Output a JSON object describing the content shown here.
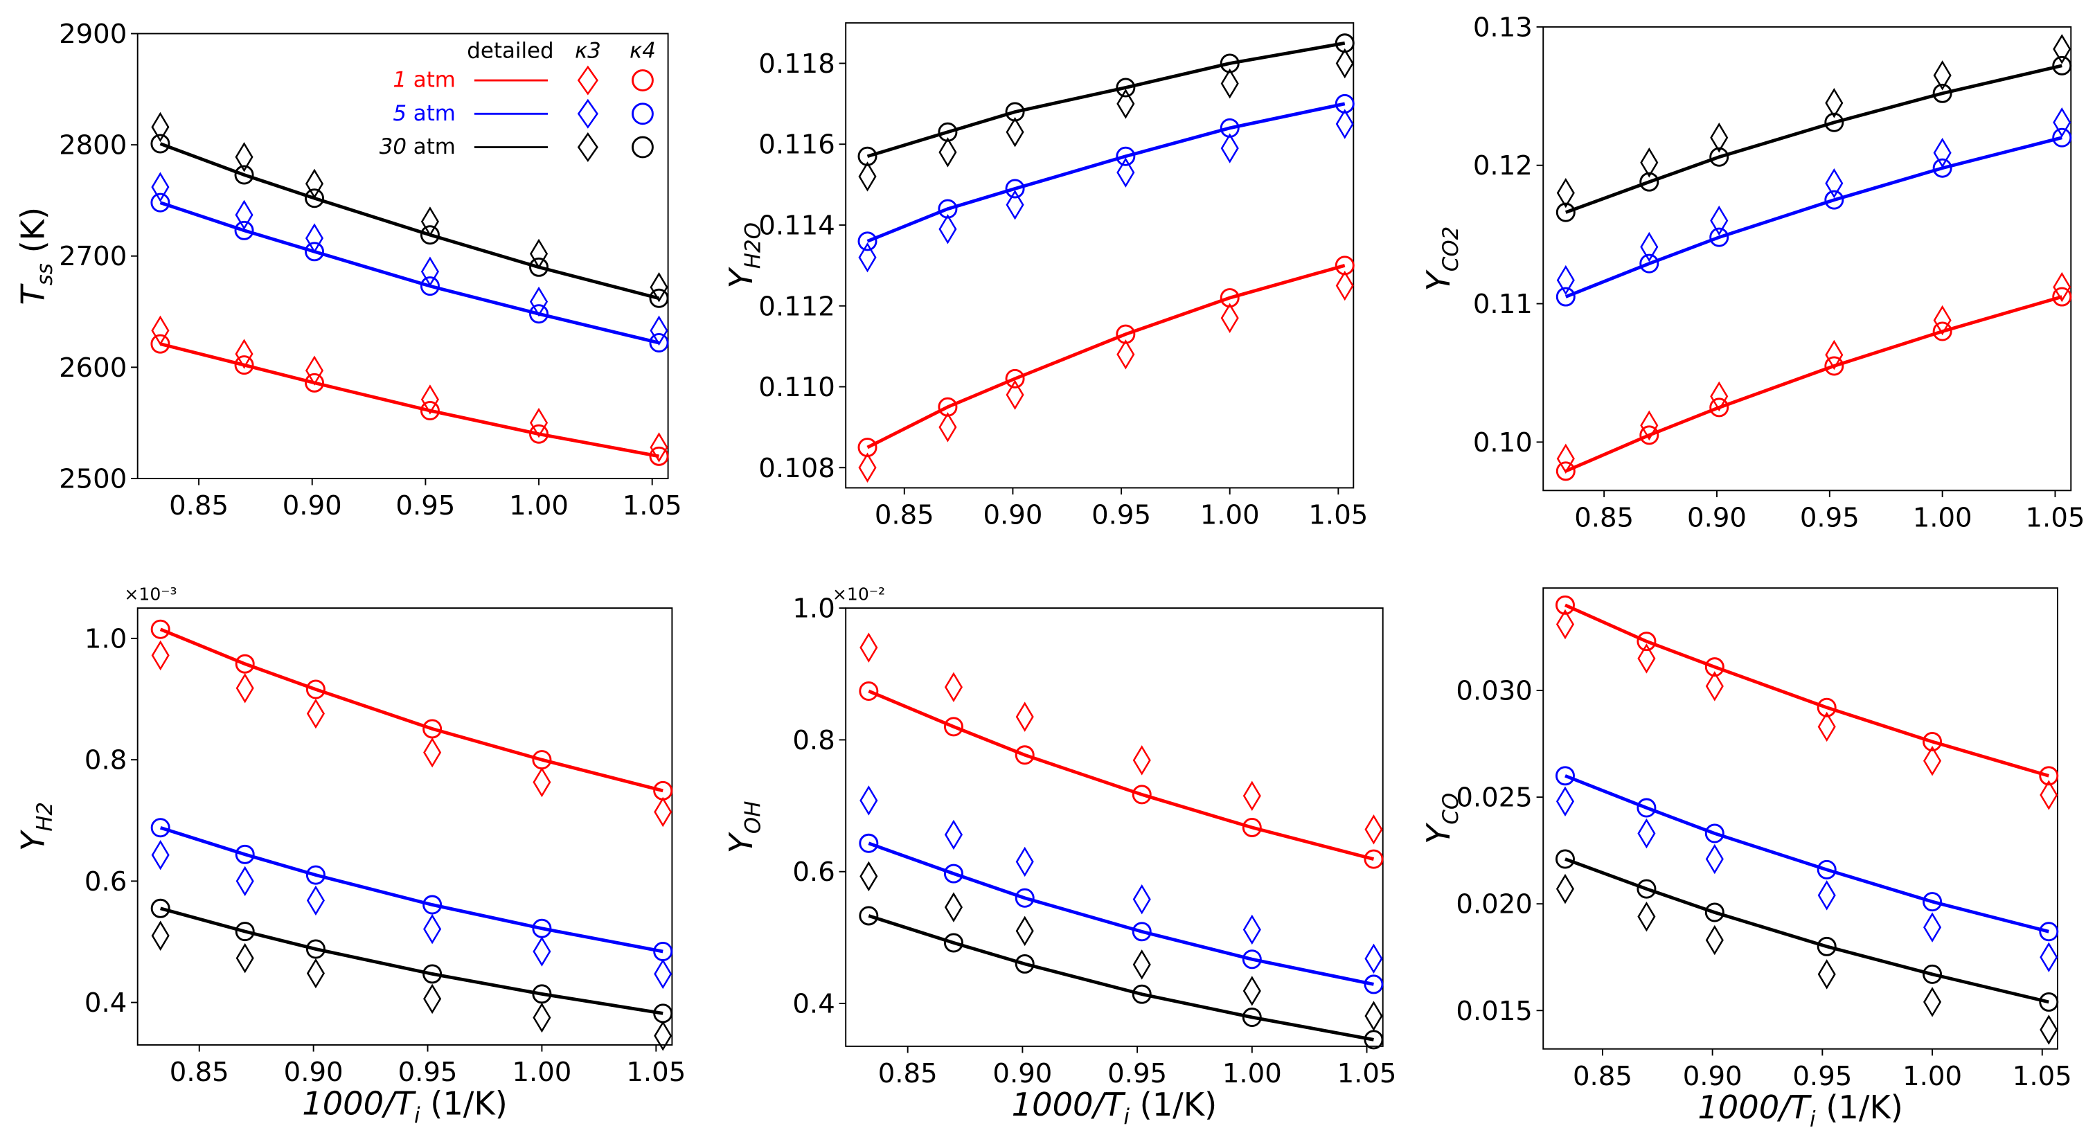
{
  "chart_data": [
    {
      "type": "line",
      "id": "tss",
      "ylabel": {
        "base": "T",
        "sub": "ss",
        "unit": " (K)"
      },
      "xlabel": "",
      "x": [
        0.833,
        0.87,
        0.901,
        0.952,
        1.0,
        1.053
      ],
      "xlim": [
        0.823,
        1.057
      ],
      "xticks": [
        "0.85",
        "0.90",
        "0.95",
        "1.00",
        "1.05"
      ],
      "ylim": [
        2500,
        2900
      ],
      "yticks": [
        "2500",
        "2600",
        "2700",
        "2800",
        "2900"
      ],
      "multiplier": "",
      "series": [
        {
          "pressure": "1 atm",
          "color": "#ff0000",
          "detailed": [
            2621,
            2602,
            2586,
            2561,
            2540,
            2520
          ],
          "k3": [
            2633,
            2612,
            2597,
            2571,
            2550,
            2528
          ],
          "k4": [
            2621,
            2602,
            2586,
            2561,
            2540,
            2520
          ]
        },
        {
          "pressure": "5 atm",
          "color": "#0000ff",
          "detailed": [
            2748,
            2723,
            2704,
            2673,
            2648,
            2622
          ],
          "k3": [
            2762,
            2737,
            2716,
            2686,
            2659,
            2633
          ],
          "k4": [
            2748,
            2723,
            2704,
            2673,
            2648,
            2622
          ]
        },
        {
          "pressure": "30 atm",
          "color": "#000000",
          "detailed": [
            2801,
            2773,
            2752,
            2719,
            2690,
            2662
          ],
          "k3": [
            2816,
            2789,
            2765,
            2731,
            2702,
            2672
          ],
          "k4": [
            2801,
            2773,
            2752,
            2719,
            2690,
            2662
          ]
        }
      ]
    },
    {
      "type": "line",
      "id": "h2o",
      "ylabel": {
        "base": "Y",
        "sub": "H2O",
        "unit": ""
      },
      "xlabel": "",
      "x": [
        0.833,
        0.87,
        0.901,
        0.952,
        1.0,
        1.053
      ],
      "xlim": [
        0.823,
        1.057
      ],
      "xticks": [
        "0.85",
        "0.90",
        "0.95",
        "1.00",
        "1.05"
      ],
      "ylim": [
        0.1075,
        0.119
      ],
      "yticks": [
        "0.108",
        "0.110",
        "0.112",
        "0.114",
        "0.116",
        "0.118"
      ],
      "multiplier": "",
      "series": [
        {
          "pressure": "1 atm",
          "color": "#ff0000",
          "detailed": [
            0.1085,
            0.1095,
            0.1102,
            0.1113,
            0.1122,
            0.113
          ],
          "k3": [
            0.108,
            0.109,
            0.1098,
            0.1108,
            0.1117,
            0.1125
          ],
          "k4": [
            0.1085,
            0.1095,
            0.1102,
            0.1113,
            0.1122,
            0.113
          ]
        },
        {
          "pressure": "5 atm",
          "color": "#0000ff",
          "detailed": [
            0.1136,
            0.1144,
            0.1149,
            0.1157,
            0.1164,
            0.117
          ],
          "k3": [
            0.1132,
            0.1139,
            0.1145,
            0.1153,
            0.1159,
            0.1165
          ],
          "k4": [
            0.1136,
            0.1144,
            0.1149,
            0.1157,
            0.1164,
            0.117
          ]
        },
        {
          "pressure": "30 atm",
          "color": "#000000",
          "detailed": [
            0.1157,
            0.1163,
            0.1168,
            0.1174,
            0.118,
            0.1185
          ],
          "k3": [
            0.1152,
            0.1158,
            0.1163,
            0.117,
            0.1175,
            0.118
          ],
          "k4": [
            0.1157,
            0.1163,
            0.1168,
            0.1174,
            0.118,
            0.1185
          ]
        }
      ]
    },
    {
      "type": "line",
      "id": "co2",
      "ylabel": {
        "base": "Y",
        "sub": "CO2",
        "unit": ""
      },
      "xlabel": "",
      "x": [
        0.833,
        0.87,
        0.901,
        0.952,
        1.0,
        1.053
      ],
      "xlim": [
        0.823,
        1.057
      ],
      "xticks": [
        "0.85",
        "0.90",
        "0.95",
        "1.00",
        "1.05"
      ],
      "ylim": [
        0.0965,
        0.13
      ],
      "yticks": [
        "0.10",
        "0.11",
        "0.12",
        "0.13"
      ],
      "multiplier": "",
      "series": [
        {
          "pressure": "1 atm",
          "color": "#ff0000",
          "detailed": [
            0.0979,
            0.1005,
            0.1025,
            0.1055,
            0.108,
            0.1105
          ],
          "k3": [
            0.0988,
            0.1012,
            0.1033,
            0.1063,
            0.1088,
            0.1112
          ],
          "k4": [
            0.0979,
            0.1005,
            0.1025,
            0.1055,
            0.108,
            0.1105
          ]
        },
        {
          "pressure": "5 atm",
          "color": "#0000ff",
          "detailed": [
            0.1105,
            0.1129,
            0.1148,
            0.1175,
            0.1198,
            0.122
          ],
          "k3": [
            0.1117,
            0.1141,
            0.116,
            0.1187,
            0.1209,
            0.1231
          ],
          "k4": [
            0.1105,
            0.1129,
            0.1148,
            0.1175,
            0.1198,
            0.122
          ]
        },
        {
          "pressure": "30 atm",
          "color": "#000000",
          "detailed": [
            0.1166,
            0.1188,
            0.1206,
            0.1231,
            0.1252,
            0.1272
          ],
          "k3": [
            0.118,
            0.1202,
            0.122,
            0.1245,
            0.1265,
            0.1284
          ],
          "k4": [
            0.1166,
            0.1188,
            0.1206,
            0.1231,
            0.1252,
            0.1272
          ]
        }
      ]
    },
    {
      "type": "line",
      "id": "h2",
      "ylabel": {
        "base": "Y",
        "sub": "H2",
        "unit": ""
      },
      "xlabel": {
        "base": "1000/T",
        "sub": "i",
        "unit": " (1/K)"
      },
      "x": [
        0.833,
        0.87,
        0.901,
        0.952,
        1.0,
        1.053
      ],
      "xlim": [
        0.823,
        1.057
      ],
      "xticks": [
        "0.85",
        "0.90",
        "0.95",
        "1.00",
        "1.05"
      ],
      "ylim": [
        0.33,
        1.05
      ],
      "yticks": [
        "0.4",
        "0.6",
        "0.8",
        "1.0"
      ],
      "multiplier": "×10⁻³",
      "series": [
        {
          "pressure": "1 atm",
          "color": "#ff0000",
          "detailed": [
            1.015,
            0.958,
            0.916,
            0.851,
            0.8,
            0.749
          ],
          "k3": [
            0.972,
            0.918,
            0.876,
            0.812,
            0.763,
            0.714
          ],
          "k4": [
            1.015,
            0.958,
            0.916,
            0.851,
            0.8,
            0.749
          ]
        },
        {
          "pressure": "5 atm",
          "color": "#0000ff",
          "detailed": [
            0.688,
            0.644,
            0.61,
            0.561,
            0.522,
            0.484
          ],
          "k3": [
            0.643,
            0.6,
            0.568,
            0.521,
            0.484,
            0.447
          ],
          "k4": [
            0.688,
            0.644,
            0.61,
            0.561,
            0.522,
            0.484
          ]
        },
        {
          "pressure": "30 atm",
          "color": "#000000",
          "detailed": [
            0.555,
            0.517,
            0.488,
            0.447,
            0.414,
            0.382
          ],
          "k3": [
            0.51,
            0.473,
            0.448,
            0.406,
            0.375,
            0.345
          ],
          "k4": [
            0.555,
            0.517,
            0.488,
            0.447,
            0.414,
            0.382
          ]
        }
      ]
    },
    {
      "type": "line",
      "id": "oh",
      "ylabel": {
        "base": "Y",
        "sub": "OH",
        "unit": ""
      },
      "xlabel": {
        "base": "1000/T",
        "sub": "i",
        "unit": " (1/K)"
      },
      "x": [
        0.833,
        0.87,
        0.901,
        0.952,
        1.0,
        1.053
      ],
      "xlim": [
        0.823,
        1.057
      ],
      "xticks": [
        "0.85",
        "0.90",
        "0.95",
        "1.00",
        "1.05"
      ],
      "ylim": [
        0.335,
        1.0
      ],
      "yticks": [
        "0.4",
        "0.6",
        "0.8",
        "1.0"
      ],
      "multiplier": "×10⁻²",
      "series": [
        {
          "pressure": "1 atm",
          "color": "#ff0000",
          "detailed": [
            0.874,
            0.82,
            0.777,
            0.717,
            0.667,
            0.619
          ],
          "k3": [
            0.94,
            0.88,
            0.835,
            0.769,
            0.715,
            0.664
          ],
          "k4": [
            0.874,
            0.82,
            0.777,
            0.717,
            0.667,
            0.619
          ]
        },
        {
          "pressure": "5 atm",
          "color": "#0000ff",
          "detailed": [
            0.643,
            0.597,
            0.56,
            0.509,
            0.467,
            0.429
          ],
          "k3": [
            0.708,
            0.656,
            0.615,
            0.558,
            0.512,
            0.468
          ],
          "k4": [
            0.643,
            0.597,
            0.56,
            0.509,
            0.467,
            0.429
          ]
        },
        {
          "pressure": "30 atm",
          "color": "#000000",
          "detailed": [
            0.533,
            0.492,
            0.46,
            0.414,
            0.379,
            0.345
          ],
          "k3": [
            0.593,
            0.546,
            0.51,
            0.459,
            0.419,
            0.381
          ],
          "k4": [
            0.533,
            0.492,
            0.46,
            0.414,
            0.379,
            0.345
          ]
        }
      ]
    },
    {
      "type": "line",
      "id": "co",
      "ylabel": {
        "base": "Y",
        "sub": "CO",
        "unit": ""
      },
      "xlabel": {
        "base": "1000/T",
        "sub": "i",
        "unit": " (1/K)"
      },
      "x": [
        0.833,
        0.87,
        0.901,
        0.952,
        1.0,
        1.053
      ],
      "xlim": [
        0.823,
        1.057
      ],
      "xticks": [
        "0.85",
        "0.90",
        "0.95",
        "1.00",
        "1.05"
      ],
      "ylim": [
        0.0132,
        0.0348
      ],
      "yticks": [
        "0.015",
        "0.020",
        "0.025",
        "0.030"
      ],
      "multiplier": "",
      "series": [
        {
          "pressure": "1 atm",
          "color": "#ff0000",
          "detailed": [
            0.034,
            0.0323,
            0.0311,
            0.0292,
            0.0276,
            0.026
          ],
          "k3": [
            0.0331,
            0.0315,
            0.0302,
            0.0283,
            0.0267,
            0.0251
          ],
          "k4": [
            0.034,
            0.0323,
            0.0311,
            0.0292,
            0.0276,
            0.026
          ]
        },
        {
          "pressure": "5 atm",
          "color": "#0000ff",
          "detailed": [
            0.026,
            0.0245,
            0.0233,
            0.0216,
            0.0201,
            0.0187
          ],
          "k3": [
            0.0248,
            0.0233,
            0.0221,
            0.0204,
            0.0189,
            0.0175
          ],
          "k4": [
            0.026,
            0.0245,
            0.0233,
            0.0216,
            0.0201,
            0.0187
          ]
        },
        {
          "pressure": "30 atm",
          "color": "#000000",
          "detailed": [
            0.0221,
            0.0207,
            0.0196,
            0.018,
            0.0167,
            0.0154
          ],
          "k3": [
            0.0207,
            0.0194,
            0.0183,
            0.0167,
            0.0154,
            0.0141
          ],
          "k4": [
            0.0221,
            0.0207,
            0.0196,
            0.018,
            0.0167,
            0.0154
          ]
        }
      ]
    }
  ],
  "legend": {
    "header_detailed": "detailed",
    "header_k3": "κ3",
    "header_k4": "κ4",
    "rows": [
      {
        "num": "1",
        "unit": " atm",
        "color": "#ff0000"
      },
      {
        "num": "5",
        "unit": " atm",
        "color": "#0000ff"
      },
      {
        "num": "30",
        "unit": " atm",
        "color": "#000000"
      }
    ]
  }
}
